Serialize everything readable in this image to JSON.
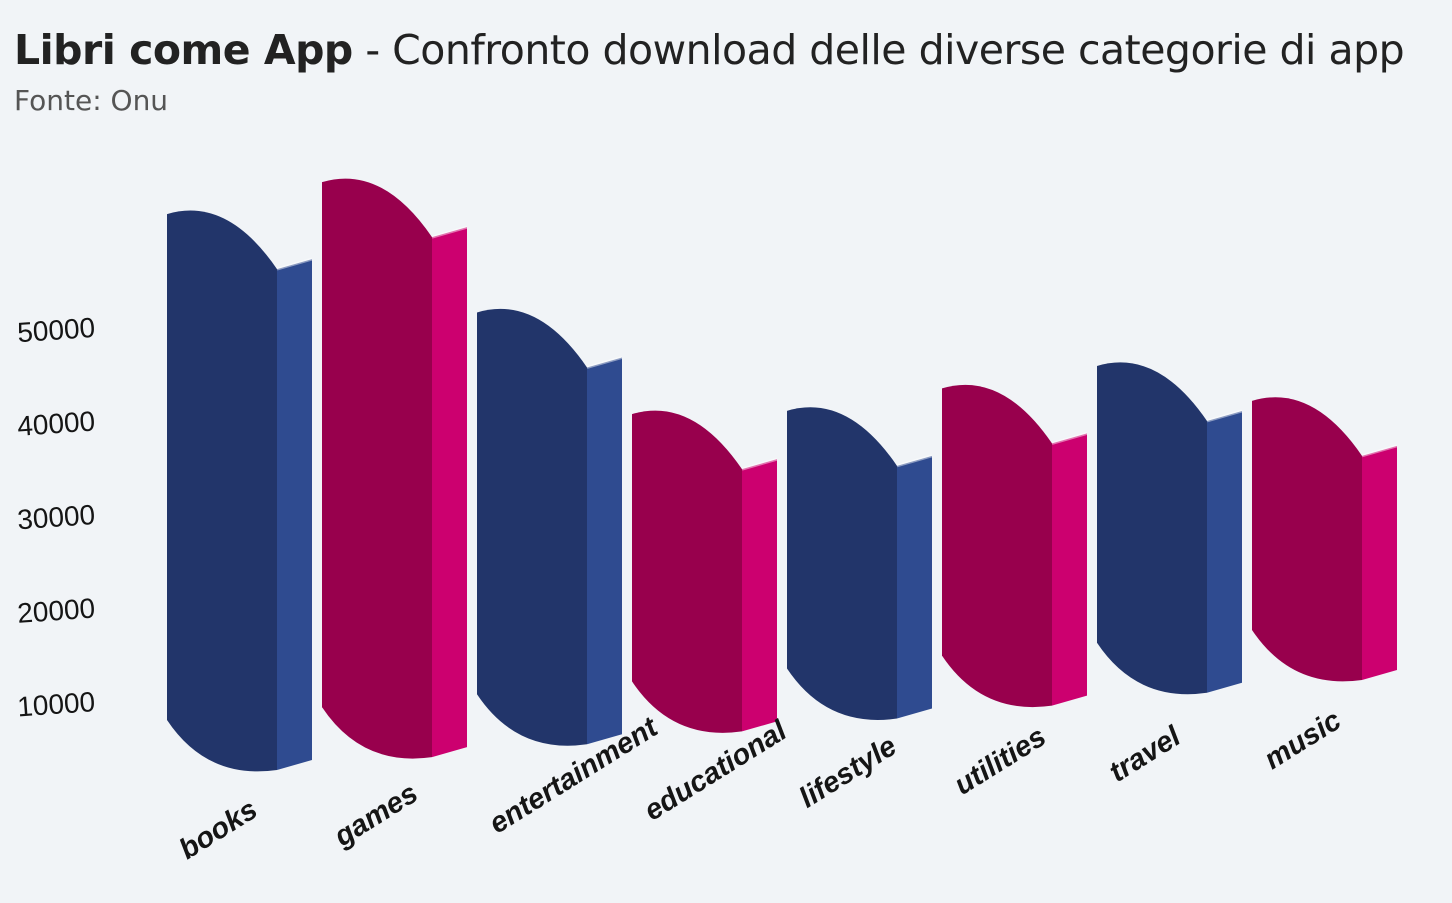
{
  "header": {
    "title_bold": "Libri come App",
    "title_rest": " - Confronto download delle diverse categorie di app",
    "source": "Fonte: Onu"
  },
  "chart_data": {
    "type": "bar",
    "title": "Libri come App - Confronto download delle diverse categorie di app",
    "subtitle": "Fonte: Onu",
    "categories": [
      "books",
      "games",
      "entertainment",
      "educational",
      "lifestyle",
      "utilities",
      "travel",
      "music"
    ],
    "values": [
      53000,
      55000,
      40000,
      28000,
      27000,
      28000,
      29000,
      24000
    ],
    "yticks": [
      10000,
      20000,
      30000,
      40000,
      50000
    ],
    "ylim": [
      0,
      55000
    ],
    "xlabel": "",
    "ylabel": "",
    "grid": false,
    "bar_colors": [
      "#22356a",
      "#98004d",
      "#22356a",
      "#98004d",
      "#22356a",
      "#98004d",
      "#22356a",
      "#98004d"
    ],
    "side_colors": [
      "#2f4b90",
      "#cc006f",
      "#2f4b90",
      "#cc006f",
      "#2f4b90",
      "#cc006f",
      "#2f4b90",
      "#cc006f"
    ]
  }
}
